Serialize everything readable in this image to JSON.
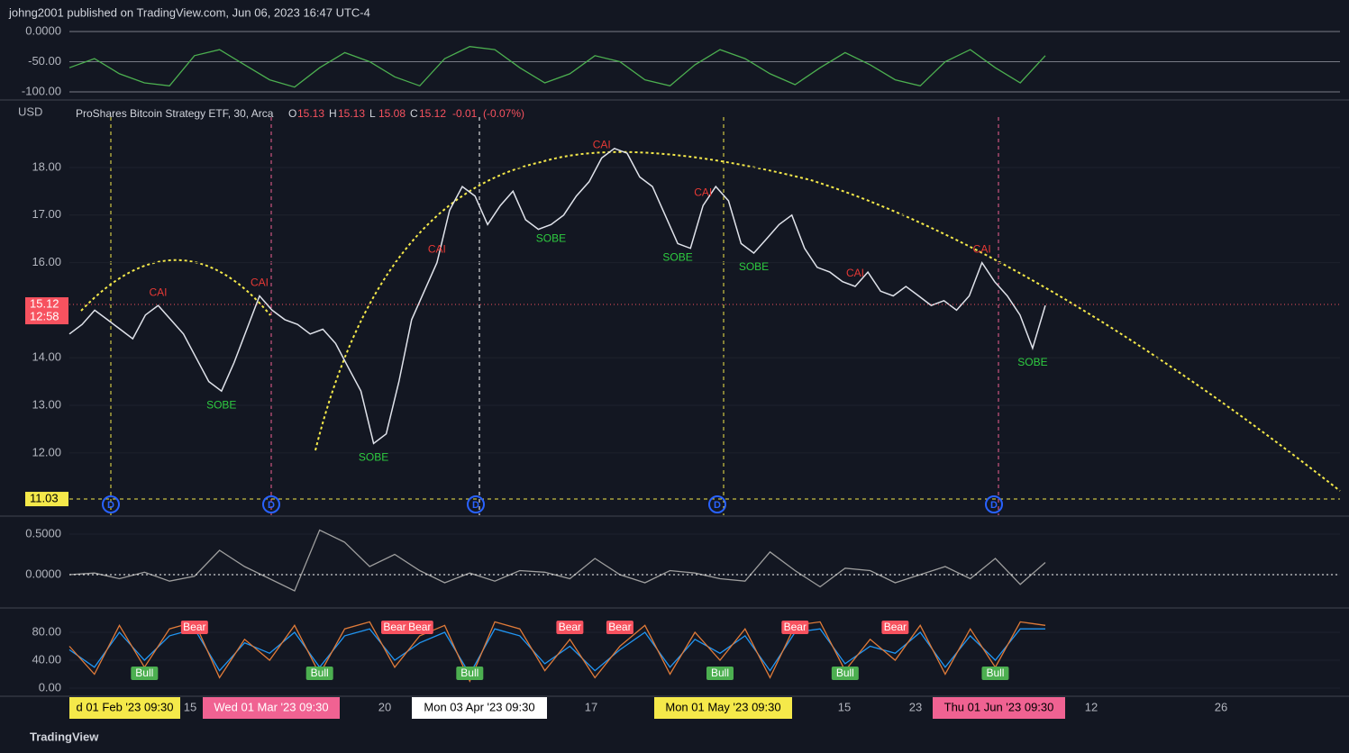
{
  "header": "johng2001 published on TradingView.com, Jun 06, 2023 16:47 UTC-4",
  "footer": "TradingView",
  "currency": "USD",
  "legend": {
    "name": "ProShares Bitcoin Strategy ETF, 30, Arca",
    "letters": [
      "O",
      "H",
      "L",
      "C"
    ],
    "open": 15.13,
    "high": 15.13,
    "low": 15.08,
    "close": 15.12,
    "change": -0.01,
    "change_pct": "(-0.07%)"
  },
  "current_price": 15.12,
  "countdown": "12:58",
  "level": 11.03,
  "dividend_marker": "D",
  "time_labels": [
    "d 01 Feb '23  09:30",
    "15",
    "Wed 01 Mar '23  09:30",
    "20",
    "Mon 03 Apr '23  09:30",
    "17",
    "Mon 01 May '23  09:30",
    "15",
    "23",
    "Thu 01 Jun '23  09:30",
    "12",
    "26"
  ],
  "chart_data": [
    {
      "type": "line",
      "ylim": [
        -111.9,
        11.9
      ],
      "yticks": [
        {
          "value": 0,
          "label": "0.0000"
        },
        {
          "value": -50,
          "label": "-50.00"
        },
        {
          "value": -100,
          "label": "-100.00"
        }
      ],
      "series": [
        {
          "color": "#4caf50",
          "values": [
            -60,
            -45,
            -70,
            -85,
            -90,
            -40,
            -30,
            -55,
            -80,
            -92,
            -60,
            -35,
            -50,
            -75,
            -90,
            -45,
            -25,
            -30,
            -60,
            -85,
            -70,
            -40,
            -50,
            -80,
            -90,
            -55,
            -30,
            -45,
            -70,
            -88,
            -60,
            -35,
            -55,
            -80,
            -90,
            -50,
            -30,
            -60,
            -85,
            -40
          ]
        }
      ]
    },
    {
      "type": "line",
      "ylim": [
        10.69,
        19.4
      ],
      "yticks": [
        {
          "value": 18,
          "label": "18.00"
        },
        {
          "value": 17,
          "label": "17.00"
        },
        {
          "value": 16,
          "label": "16.00"
        },
        {
          "value": 14,
          "label": "14.00"
        },
        {
          "value": 13,
          "label": "13.00"
        },
        {
          "value": 12,
          "label": "12.00"
        }
      ],
      "series": [
        {
          "color": "#e0e3eb",
          "values": [
            14.5,
            14.7,
            15.0,
            14.8,
            14.6,
            14.4,
            14.9,
            15.1,
            14.8,
            14.5,
            14.0,
            13.5,
            13.3,
            13.9,
            14.6,
            15.3,
            15.0,
            14.8,
            14.7,
            14.5,
            14.6,
            14.3,
            13.8,
            13.3,
            12.2,
            12.4,
            13.5,
            14.8,
            15.4,
            16.0,
            17.1,
            17.6,
            17.4,
            16.8,
            17.2,
            17.5,
            16.9,
            16.7,
            16.8,
            17.0,
            17.4,
            17.7,
            18.2,
            18.4,
            18.3,
            17.8,
            17.6,
            17.0,
            16.4,
            16.3,
            17.2,
            17.6,
            17.3,
            16.4,
            16.2,
            16.5,
            16.8,
            17.0,
            16.3,
            15.9,
            15.8,
            15.6,
            15.5,
            15.8,
            15.4,
            15.3,
            15.5,
            15.3,
            15.1,
            15.2,
            15.0,
            15.3,
            16.0,
            15.6,
            15.3,
            14.9,
            14.2,
            15.1
          ]
        }
      ],
      "annotations": [
        {
          "text": "CAI",
          "at": 7
        },
        {
          "text": "CAI",
          "at": 15
        },
        {
          "text": "CAI",
          "at": 29
        },
        {
          "text": "CAI",
          "at": 42
        },
        {
          "text": "CAI",
          "at": 50
        },
        {
          "text": "CAI",
          "at": 62
        },
        {
          "text": "CAI",
          "at": 72
        },
        {
          "text": "SOBE",
          "at": 12
        },
        {
          "text": "SOBE",
          "at": 24
        },
        {
          "text": "SOBE",
          "at": 38
        },
        {
          "text": "SOBE",
          "at": 48
        },
        {
          "text": "SOBE",
          "at": 54
        },
        {
          "text": "SOBE",
          "at": 76
        }
      ]
    },
    {
      "type": "line",
      "ylim": [
        -0.378,
        0.7
      ],
      "yticks": [
        {
          "value": 0.5,
          "label": "0.5000"
        },
        {
          "value": 0,
          "label": "0.0000"
        }
      ],
      "series": [
        {
          "color": "#9e9e9e",
          "values": [
            0,
            0.02,
            -0.05,
            0.03,
            -0.08,
            -0.02,
            0.3,
            0.1,
            -0.05,
            -0.2,
            0.55,
            0.4,
            0.1,
            0.25,
            0.05,
            -0.1,
            0.02,
            -0.08,
            0.05,
            0.03,
            -0.05,
            0.2,
            0.0,
            -0.1,
            0.05,
            0.02,
            -0.05,
            -0.08,
            0.28,
            0.05,
            -0.15,
            0.08,
            0.05,
            -0.1,
            0.0,
            0.1,
            -0.05,
            0.2,
            -0.12,
            0.15
          ]
        }
      ]
    },
    {
      "type": "line",
      "ylim": [
        -10.3,
        112.3
      ],
      "yticks": [
        {
          "value": 80,
          "label": "80.00"
        },
        {
          "value": 40,
          "label": "40.00"
        },
        {
          "value": 0,
          "label": "0.00"
        }
      ],
      "series": [
        {
          "color": "#2196f3",
          "values": [
            55,
            30,
            80,
            40,
            75,
            85,
            25,
            65,
            50,
            80,
            30,
            75,
            85,
            40,
            65,
            80,
            20,
            85,
            75,
            35,
            60,
            25,
            55,
            80,
            30,
            70,
            50,
            75,
            25,
            80,
            85,
            35,
            60,
            50,
            80,
            30,
            75,
            40,
            85,
            85
          ]
        },
        {
          "color": "#e07b39",
          "values": [
            60,
            20,
            90,
            30,
            85,
            95,
            15,
            70,
            40,
            90,
            20,
            85,
            95,
            30,
            75,
            90,
            10,
            95,
            85,
            25,
            70,
            15,
            60,
            90,
            20,
            80,
            40,
            85,
            15,
            90,
            95,
            25,
            70,
            40,
            90,
            20,
            85,
            30,
            95,
            90
          ]
        }
      ],
      "annotations": [
        {
          "text": "Bear",
          "at": 5
        },
        {
          "text": "Bear",
          "at": 13
        },
        {
          "text": "Bear",
          "at": 14
        },
        {
          "text": "Bear",
          "at": 20
        },
        {
          "text": "Bear",
          "at": 22
        },
        {
          "text": "Bear",
          "at": 29
        },
        {
          "text": "Bear",
          "at": 33
        },
        {
          "text": "Bull",
          "at": 3
        },
        {
          "text": "Bull",
          "at": 10
        },
        {
          "text": "Bull",
          "at": 16
        },
        {
          "text": "Bull",
          "at": 26
        },
        {
          "text": "Bull",
          "at": 31
        },
        {
          "text": "Bull",
          "at": 37
        }
      ]
    }
  ]
}
